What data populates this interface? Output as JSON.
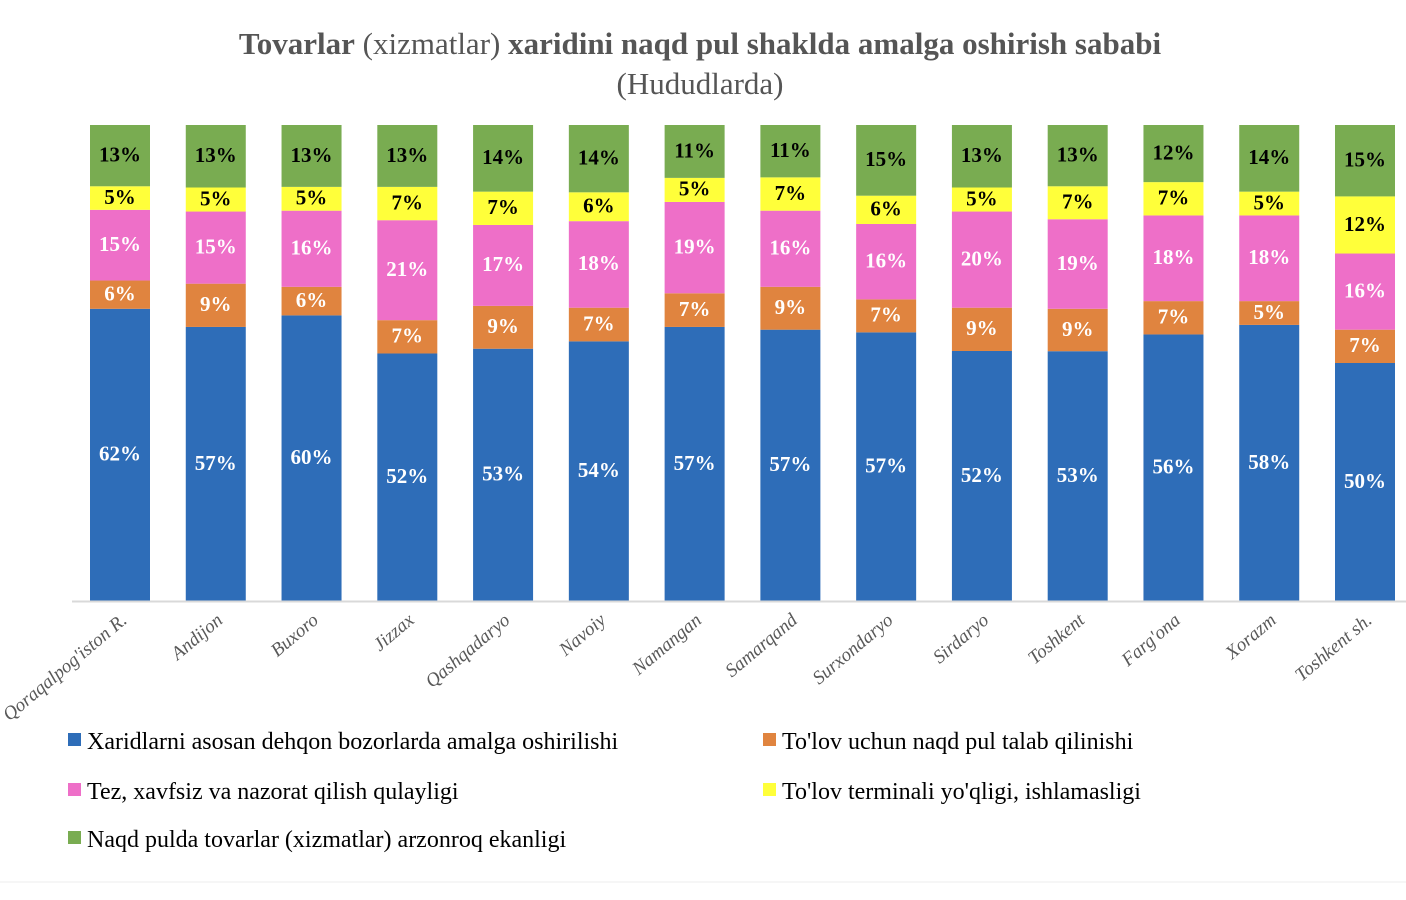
{
  "chart_data": {
    "type": "bar",
    "stacked": true,
    "normalized_100_percent": true,
    "title_parts": [
      "Tovarlar",
      "(xizmatlar)",
      "xaridini naqd pul shaklda amalga oshirish sababi"
    ],
    "subtitle": "(Hududlarda)",
    "xlabel": "",
    "ylabel": "",
    "grid": false,
    "legend_position": "bottom",
    "categories": [
      "Qoraqalpog'iston R.",
      "Andijon",
      "Buxoro",
      "Jizzax",
      "Qashqadaryo",
      "Navoiy",
      "Namangan",
      "Samarqand",
      "Surxondaryo",
      "Sirdaryo",
      "Toshkent",
      "Farg'ona",
      "Xorazm",
      "Toshkent sh."
    ],
    "series": [
      {
        "name": "Xaridlarni asosan dehqon bozorlarda amalga oshirilishi",
        "color": "#2E6DB8",
        "label_color": "#ffffff",
        "values": [
          62,
          57,
          60,
          52,
          53,
          54,
          57,
          57,
          57,
          52,
          53,
          56,
          58,
          50
        ]
      },
      {
        "name": "To'lov uchun naqd pul talab qilinishi",
        "color": "#E0843F",
        "label_color": "#ffffff",
        "values": [
          6,
          9,
          6,
          7,
          9,
          7,
          7,
          9,
          7,
          9,
          9,
          7,
          5,
          7
        ]
      },
      {
        "name": "Tez, xavfsiz va nazorat qilish qulayligi",
        "color": "#EE6FC8",
        "label_color": "#ffffff",
        "values": [
          15,
          15,
          16,
          21,
          17,
          18,
          19,
          16,
          16,
          20,
          19,
          18,
          18,
          16
        ]
      },
      {
        "name": "To'lov terminali yo'qligi, ishlamasligi",
        "color": "#FFFF3A",
        "label_color": "#000000",
        "values": [
          5,
          5,
          5,
          7,
          7,
          6,
          5,
          7,
          6,
          5,
          7,
          7,
          5,
          12
        ]
      },
      {
        "name": "Naqd pulda tovarlar (xizmatlar) arzonroq ekanligi",
        "color": "#79AC51",
        "label_color": "#000000",
        "values": [
          13,
          13,
          13,
          13,
          14,
          14,
          11,
          11,
          15,
          13,
          13,
          12,
          14,
          15
        ]
      }
    ],
    "value_suffix": "%"
  }
}
